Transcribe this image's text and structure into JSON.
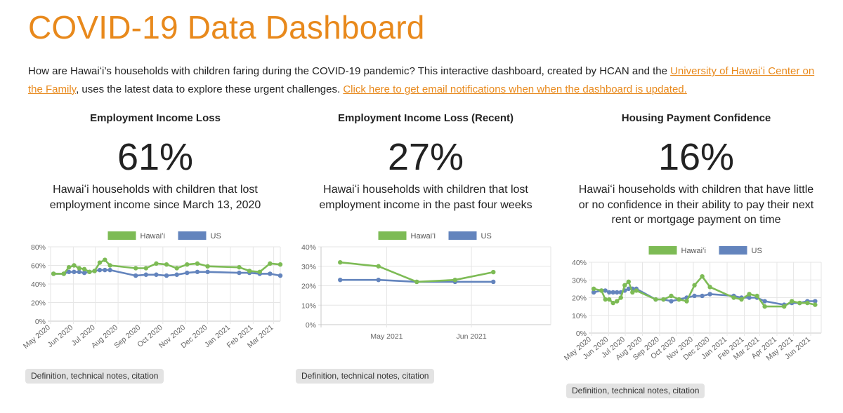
{
  "page": {
    "title": "COVID-19 Data Dashboard",
    "intro": {
      "text_1": "How are Hawaiʻi’s households with children faring during the COVID-19 pandemic? This interactive dashboard, created by HCAN and the ",
      "link_1": "University of Hawaiʻi Center on the Family",
      "text_2": ", uses the latest data to explore these urgent challenges. ",
      "link_2": "Click here to get email notifications when when the dashboard is updated."
    }
  },
  "colors": {
    "accent": "#e8891c",
    "hawaii": "#7dbb55",
    "us": "#6384bd"
  },
  "panels": [
    {
      "title": "Employment Income Loss",
      "value": "61%",
      "description": "Hawaiʻi households with children that lost\nemployment income since March 13, 2020",
      "notes_label": "Definition, technical notes, citation"
    },
    {
      "title": "Employment Income Loss (Recent)",
      "value": "27%",
      "description": "Hawaiʻi households with children that lost\nemployment income in the past four weeks",
      "notes_label": "Definition, technical notes, citation"
    },
    {
      "title": "Housing Payment Confidence",
      "value": "16%",
      "description": "Hawaiʻi households with children that have little\nor no confidence in their ability to pay their next\nrent or mortgage payment on time",
      "notes_label": "Definition, technical notes, citation"
    }
  ],
  "chart_data": [
    {
      "type": "line",
      "legend": [
        "Hawaiʻi",
        "US"
      ],
      "ylim": [
        0,
        80
      ],
      "yticks": [
        "0%",
        "20%",
        "40%",
        "60%",
        "80%"
      ],
      "xlim": [
        "2020-05-01",
        "2021-03-10"
      ],
      "xticks": [
        {
          "label": "May 2020",
          "date": "2020-05-01"
        },
        {
          "label": "Jun 2020",
          "date": "2020-06-01"
        },
        {
          "label": "Jul 2020",
          "date": "2020-07-01"
        },
        {
          "label": "Aug 2020",
          "date": "2020-08-01"
        },
        {
          "label": "Sep 2020",
          "date": "2020-09-01"
        },
        {
          "label": "Oct 2020",
          "date": "2020-10-01"
        },
        {
          "label": "Nov 2020",
          "date": "2020-11-01"
        },
        {
          "label": "Dec 2020",
          "date": "2020-12-01"
        },
        {
          "label": "Jan 2021",
          "date": "2021-01-01"
        },
        {
          "label": "Feb 2021",
          "date": "2021-02-01"
        },
        {
          "label": "Mar 2021",
          "date": "2021-03-01"
        }
      ],
      "series": [
        {
          "name": "Hawaiʻi",
          "color": "#7dbb55",
          "points": [
            {
              "x": "2020-05-05",
              "y": 51
            },
            {
              "x": "2020-05-19",
              "y": 51
            },
            {
              "x": "2020-05-26",
              "y": 58
            },
            {
              "x": "2020-06-02",
              "y": 60
            },
            {
              "x": "2020-06-09",
              "y": 57
            },
            {
              "x": "2020-06-16",
              "y": 56
            },
            {
              "x": "2020-06-23",
              "y": 53
            },
            {
              "x": "2020-06-30",
              "y": 54
            },
            {
              "x": "2020-07-07",
              "y": 63
            },
            {
              "x": "2020-07-14",
              "y": 66
            },
            {
              "x": "2020-07-21",
              "y": 60
            },
            {
              "x": "2020-08-25",
              "y": 57
            },
            {
              "x": "2020-09-08",
              "y": 57
            },
            {
              "x": "2020-09-22",
              "y": 62
            },
            {
              "x": "2020-10-06",
              "y": 61
            },
            {
              "x": "2020-10-20",
              "y": 57
            },
            {
              "x": "2020-11-03",
              "y": 61
            },
            {
              "x": "2020-11-17",
              "y": 62
            },
            {
              "x": "2020-12-01",
              "y": 59
            },
            {
              "x": "2021-01-13",
              "y": 58
            },
            {
              "x": "2021-01-27",
              "y": 54
            },
            {
              "x": "2021-02-10",
              "y": 53
            },
            {
              "x": "2021-02-24",
              "y": 62
            },
            {
              "x": "2021-03-10",
              "y": 61
            }
          ]
        },
        {
          "name": "US",
          "color": "#6384bd",
          "points": [
            {
              "x": "2020-05-05",
              "y": 51
            },
            {
              "x": "2020-05-19",
              "y": 51
            },
            {
              "x": "2020-05-26",
              "y": 53
            },
            {
              "x": "2020-06-02",
              "y": 53
            },
            {
              "x": "2020-06-09",
              "y": 53
            },
            {
              "x": "2020-06-16",
              "y": 52
            },
            {
              "x": "2020-06-23",
              "y": 53
            },
            {
              "x": "2020-06-30",
              "y": 54
            },
            {
              "x": "2020-07-07",
              "y": 55
            },
            {
              "x": "2020-07-14",
              "y": 55
            },
            {
              "x": "2020-07-21",
              "y": 55
            },
            {
              "x": "2020-08-25",
              "y": 49
            },
            {
              "x": "2020-09-08",
              "y": 50
            },
            {
              "x": "2020-09-22",
              "y": 50
            },
            {
              "x": "2020-10-06",
              "y": 49
            },
            {
              "x": "2020-10-20",
              "y": 50
            },
            {
              "x": "2020-11-03",
              "y": 52
            },
            {
              "x": "2020-11-17",
              "y": 53
            },
            {
              "x": "2020-12-01",
              "y": 53
            },
            {
              "x": "2021-01-13",
              "y": 52
            },
            {
              "x": "2021-01-27",
              "y": 52
            },
            {
              "x": "2021-02-10",
              "y": 51
            },
            {
              "x": "2021-02-24",
              "y": 51
            },
            {
              "x": "2021-03-10",
              "y": 49
            }
          ]
        }
      ]
    },
    {
      "type": "line",
      "legend": [
        "Hawaiʻi",
        "US"
      ],
      "ylim": [
        0,
        40
      ],
      "yticks": [
        "0%",
        "10%",
        "20%",
        "30%",
        "40%"
      ],
      "xlim": [
        "2021-04-07",
        "2021-06-30"
      ],
      "xticks": [
        {
          "label": "May 2021",
          "date": "2021-05-01"
        },
        {
          "label": "Jun 2021",
          "date": "2021-06-01"
        }
      ],
      "series": [
        {
          "name": "Hawaiʻi",
          "color": "#7dbb55",
          "points": [
            {
              "x": "2021-04-14",
              "y": 32
            },
            {
              "x": "2021-04-28",
              "y": 30
            },
            {
              "x": "2021-05-12",
              "y": 22
            },
            {
              "x": "2021-05-26",
              "y": 23
            },
            {
              "x": "2021-06-09",
              "y": 27
            }
          ]
        },
        {
          "name": "US",
          "color": "#6384bd",
          "points": [
            {
              "x": "2021-04-14",
              "y": 23
            },
            {
              "x": "2021-04-28",
              "y": 23
            },
            {
              "x": "2021-05-12",
              "y": 22
            },
            {
              "x": "2021-05-26",
              "y": 22
            },
            {
              "x": "2021-06-09",
              "y": 22
            }
          ]
        }
      ]
    },
    {
      "type": "line",
      "legend": [
        "Hawaiʻi",
        "US"
      ],
      "ylim": [
        0,
        40
      ],
      "yticks": [
        "0%",
        "10%",
        "20%",
        "30%",
        "40%"
      ],
      "xlim": [
        "2020-05-01",
        "2021-06-20"
      ],
      "xticks": [
        {
          "label": "May 2020",
          "date": "2020-05-01"
        },
        {
          "label": "Jun 2020",
          "date": "2020-06-01"
        },
        {
          "label": "Jul 2020",
          "date": "2020-07-01"
        },
        {
          "label": "Aug 2020",
          "date": "2020-08-01"
        },
        {
          "label": "Sep 2020",
          "date": "2020-09-01"
        },
        {
          "label": "Oct 2020",
          "date": "2020-10-01"
        },
        {
          "label": "Nov 2020",
          "date": "2020-11-01"
        },
        {
          "label": "Dec 2020",
          "date": "2020-12-01"
        },
        {
          "label": "Jan 2021",
          "date": "2021-01-01"
        },
        {
          "label": "Feb 2021",
          "date": "2021-02-01"
        },
        {
          "label": "Mar 2021",
          "date": "2021-03-01"
        },
        {
          "label": "Apr 2021",
          "date": "2021-04-01"
        },
        {
          "label": "May 2021",
          "date": "2021-05-01"
        },
        {
          "label": "Jun 2021",
          "date": "2021-06-01"
        }
      ],
      "series": [
        {
          "name": "Hawaiʻi",
          "color": "#7dbb55",
          "points": [
            {
              "x": "2020-05-05",
              "y": 25
            },
            {
              "x": "2020-05-19",
              "y": 24
            },
            {
              "x": "2020-05-26",
              "y": 19
            },
            {
              "x": "2020-06-02",
              "y": 19
            },
            {
              "x": "2020-06-09",
              "y": 17
            },
            {
              "x": "2020-06-16",
              "y": 18
            },
            {
              "x": "2020-06-23",
              "y": 20
            },
            {
              "x": "2020-06-30",
              "y": 27
            },
            {
              "x": "2020-07-07",
              "y": 29
            },
            {
              "x": "2020-07-14",
              "y": 23
            },
            {
              "x": "2020-07-21",
              "y": 24
            },
            {
              "x": "2020-08-25",
              "y": 19
            },
            {
              "x": "2020-09-08",
              "y": 19
            },
            {
              "x": "2020-09-22",
              "y": 21
            },
            {
              "x": "2020-10-06",
              "y": 19
            },
            {
              "x": "2020-10-20",
              "y": 18
            },
            {
              "x": "2020-11-03",
              "y": 27
            },
            {
              "x": "2020-11-17",
              "y": 32
            },
            {
              "x": "2020-12-01",
              "y": 26
            },
            {
              "x": "2021-01-13",
              "y": 20
            },
            {
              "x": "2021-01-27",
              "y": 19
            },
            {
              "x": "2021-02-10",
              "y": 22
            },
            {
              "x": "2021-02-24",
              "y": 21
            },
            {
              "x": "2021-03-10",
              "y": 15
            },
            {
              "x": "2021-04-14",
              "y": 15
            },
            {
              "x": "2021-04-28",
              "y": 18
            },
            {
              "x": "2021-05-12",
              "y": 17
            },
            {
              "x": "2021-05-26",
              "y": 17
            },
            {
              "x": "2021-06-09",
              "y": 16
            }
          ]
        },
        {
          "name": "US",
          "color": "#6384bd",
          "points": [
            {
              "x": "2020-05-05",
              "y": 23
            },
            {
              "x": "2020-05-19",
              "y": 24
            },
            {
              "x": "2020-05-26",
              "y": 24
            },
            {
              "x": "2020-06-02",
              "y": 23
            },
            {
              "x": "2020-06-09",
              "y": 23
            },
            {
              "x": "2020-06-16",
              "y": 23
            },
            {
              "x": "2020-06-23",
              "y": 23
            },
            {
              "x": "2020-06-30",
              "y": 24
            },
            {
              "x": "2020-07-07",
              "y": 25
            },
            {
              "x": "2020-07-14",
              "y": 25
            },
            {
              "x": "2020-07-21",
              "y": 25
            },
            {
              "x": "2020-08-25",
              "y": 19
            },
            {
              "x": "2020-09-08",
              "y": 19
            },
            {
              "x": "2020-09-22",
              "y": 18
            },
            {
              "x": "2020-10-06",
              "y": 19
            },
            {
              "x": "2020-10-20",
              "y": 20
            },
            {
              "x": "2020-11-03",
              "y": 21
            },
            {
              "x": "2020-11-17",
              "y": 21
            },
            {
              "x": "2020-12-01",
              "y": 22
            },
            {
              "x": "2021-01-13",
              "y": 21
            },
            {
              "x": "2021-01-27",
              "y": 20
            },
            {
              "x": "2021-02-10",
              "y": 20
            },
            {
              "x": "2021-02-24",
              "y": 20
            },
            {
              "x": "2021-03-10",
              "y": 18
            },
            {
              "x": "2021-04-14",
              "y": 16
            },
            {
              "x": "2021-04-28",
              "y": 17
            },
            {
              "x": "2021-05-12",
              "y": 17
            },
            {
              "x": "2021-05-26",
              "y": 18
            },
            {
              "x": "2021-06-09",
              "y": 18
            }
          ]
        }
      ]
    }
  ]
}
